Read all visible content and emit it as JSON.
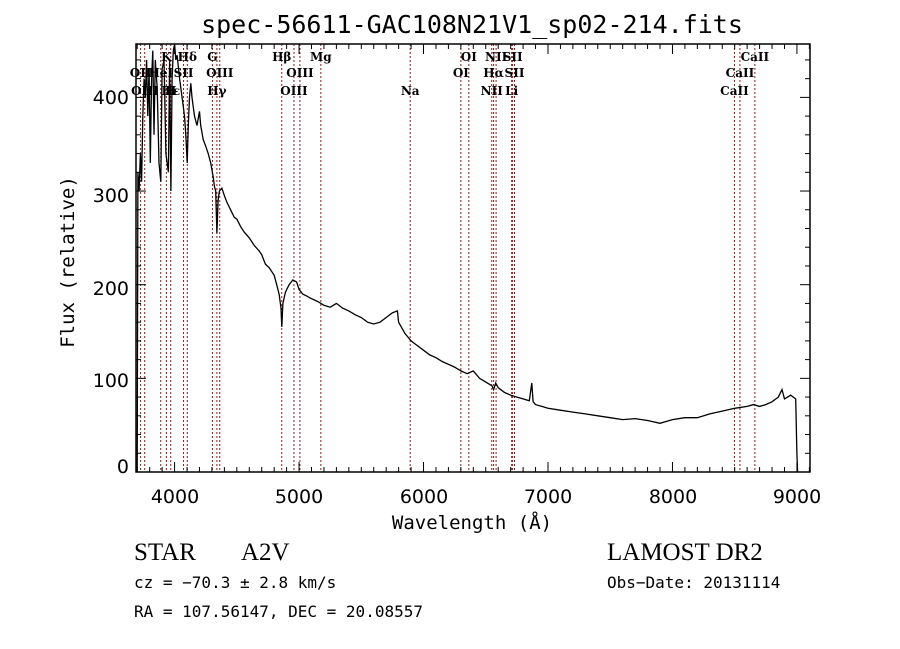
{
  "chart_data": {
    "type": "line",
    "title": "spec-56611-GAC108N21V1_sp02-214.fits",
    "xlabel": "Wavelength (Å)",
    "ylabel": "Flux (relative)",
    "xlim": [
      3690,
      9105
    ],
    "ylim": [
      0,
      457
    ],
    "grid": false,
    "x_ticks": [
      4000,
      5000,
      6000,
      7000,
      8000,
      9000
    ],
    "x_tick_labels": [
      "4000",
      "5000",
      "6000",
      "7000",
      "8000",
      "9000"
    ],
    "y_ticks": [
      0,
      100,
      200,
      300,
      400
    ],
    "y_tick_labels": [
      "0",
      "100",
      "200",
      "300",
      "400"
    ],
    "series": [
      {
        "name": "spectrum",
        "color": "#000000",
        "points": [
          [
            3700,
            0
          ],
          [
            3705,
            320
          ],
          [
            3715,
            300
          ],
          [
            3725,
            340
          ],
          [
            3735,
            310
          ],
          [
            3745,
            380
          ],
          [
            3755,
            420
          ],
          [
            3765,
            400
          ],
          [
            3775,
            440
          ],
          [
            3785,
            380
          ],
          [
            3795,
            430
          ],
          [
            3805,
            330
          ],
          [
            3815,
            420
          ],
          [
            3825,
            450
          ],
          [
            3835,
            360
          ],
          [
            3845,
            440
          ],
          [
            3860,
            410
          ],
          [
            3875,
            330
          ],
          [
            3889,
            310
          ],
          [
            3900,
            430
          ],
          [
            3915,
            440
          ],
          [
            3930,
            340
          ],
          [
            3950,
            320
          ],
          [
            3960,
            440
          ],
          [
            3970,
            300
          ],
          [
            3980,
            420
          ],
          [
            3990,
            450
          ],
          [
            4000,
            460
          ],
          [
            4010,
            440
          ],
          [
            4020,
            445
          ],
          [
            4040,
            420
          ],
          [
            4060,
            400
          ],
          [
            4080,
            380
          ],
          [
            4090,
            360
          ],
          [
            4101,
            330
          ],
          [
            4110,
            370
          ],
          [
            4120,
            400
          ],
          [
            4130,
            415
          ],
          [
            4140,
            400
          ],
          [
            4160,
            380
          ],
          [
            4180,
            370
          ],
          [
            4200,
            385
          ],
          [
            4210,
            370
          ],
          [
            4230,
            355
          ],
          [
            4250,
            348
          ],
          [
            4270,
            340
          ],
          [
            4290,
            330
          ],
          [
            4310,
            315
          ],
          [
            4320,
            305
          ],
          [
            4330,
            300
          ],
          [
            4340,
            255
          ],
          [
            4350,
            290
          ],
          [
            4360,
            300
          ],
          [
            4380,
            303
          ],
          [
            4400,
            295
          ],
          [
            4420,
            288
          ],
          [
            4450,
            280
          ],
          [
            4480,
            272
          ],
          [
            4500,
            270
          ],
          [
            4530,
            262
          ],
          [
            4560,
            256
          ],
          [
            4600,
            250
          ],
          [
            4640,
            242
          ],
          [
            4680,
            236
          ],
          [
            4700,
            232
          ],
          [
            4730,
            222
          ],
          [
            4760,
            218
          ],
          [
            4800,
            210
          ],
          [
            4820,
            200
          ],
          [
            4840,
            190
          ],
          [
            4855,
            175
          ],
          [
            4861,
            155
          ],
          [
            4870,
            180
          ],
          [
            4890,
            192
          ],
          [
            4920,
            200
          ],
          [
            4950,
            205
          ],
          [
            4980,
            203
          ],
          [
            5000,
            195
          ],
          [
            5030,
            190
          ],
          [
            5060,
            188
          ],
          [
            5100,
            185
          ],
          [
            5150,
            182
          ],
          [
            5200,
            178
          ],
          [
            5250,
            176
          ],
          [
            5300,
            180
          ],
          [
            5350,
            175
          ],
          [
            5400,
            172
          ],
          [
            5450,
            168
          ],
          [
            5500,
            165
          ],
          [
            5550,
            160
          ],
          [
            5600,
            158
          ],
          [
            5650,
            160
          ],
          [
            5700,
            165
          ],
          [
            5750,
            170
          ],
          [
            5790,
            172
          ],
          [
            5800,
            160
          ],
          [
            5850,
            148
          ],
          [
            5900,
            140
          ],
          [
            5950,
            135
          ],
          [
            6000,
            130
          ],
          [
            6050,
            125
          ],
          [
            6100,
            122
          ],
          [
            6150,
            118
          ],
          [
            6200,
            115
          ],
          [
            6250,
            112
          ],
          [
            6300,
            108
          ],
          [
            6350,
            105
          ],
          [
            6400,
            108
          ],
          [
            6450,
            100
          ],
          [
            6500,
            96
          ],
          [
            6550,
            92
          ],
          [
            6563,
            88
          ],
          [
            6580,
            95
          ],
          [
            6600,
            90
          ],
          [
            6650,
            85
          ],
          [
            6700,
            82
          ],
          [
            6750,
            80
          ],
          [
            6800,
            78
          ],
          [
            6850,
            76
          ],
          [
            6870,
            95
          ],
          [
            6880,
            75
          ],
          [
            6900,
            72
          ],
          [
            6950,
            70
          ],
          [
            7000,
            68
          ],
          [
            7100,
            66
          ],
          [
            7200,
            64
          ],
          [
            7300,
            62
          ],
          [
            7400,
            60
          ],
          [
            7500,
            58
          ],
          [
            7600,
            56
          ],
          [
            7700,
            57
          ],
          [
            7800,
            55
          ],
          [
            7900,
            52
          ],
          [
            8000,
            56
          ],
          [
            8100,
            58
          ],
          [
            8200,
            58
          ],
          [
            8300,
            62
          ],
          [
            8400,
            65
          ],
          [
            8500,
            68
          ],
          [
            8600,
            70
          ],
          [
            8650,
            72
          ],
          [
            8700,
            70
          ],
          [
            8750,
            72
          ],
          [
            8800,
            75
          ],
          [
            8850,
            80
          ],
          [
            8880,
            88
          ],
          [
            8900,
            78
          ],
          [
            8950,
            82
          ],
          [
            8990,
            78
          ],
          [
            9000,
            20
          ],
          [
            9005,
            0
          ]
        ]
      }
    ],
    "line_markers": {
      "color": "#8b1a1a",
      "lines": [
        {
          "label": "Hδ",
          "wavelength": 4102,
          "row": 1
        },
        {
          "label": "K",
          "wavelength": 3934,
          "row": 1
        },
        {
          "label": "OII",
          "wavelength": 3727,
          "row": 2
        },
        {
          "label": "HeI",
          "wavelength": 3889,
          "row": 2
        },
        {
          "label": "SII",
          "wavelength": 4072,
          "row": 2
        },
        {
          "label": "OIII",
          "wavelength": 3760,
          "row": 3
        },
        {
          "label": "H",
          "wavelength": 3969,
          "row": 3
        },
        {
          "label": "Hε",
          "wavelength": 3970,
          "row": 3
        },
        {
          "label": "G",
          "wavelength": 4304,
          "row": 1
        },
        {
          "label": "OIII",
          "wavelength": 4363,
          "row": 2
        },
        {
          "label": "Hγ",
          "wavelength": 4340,
          "row": 3
        },
        {
          "label": "Hβ",
          "wavelength": 4861,
          "row": 1
        },
        {
          "label": "Mg",
          "wavelength": 5175,
          "row": 1
        },
        {
          "label": "OIII",
          "wavelength": 5007,
          "row": 2
        },
        {
          "label": "OIII",
          "wavelength": 4959,
          "row": 3
        },
        {
          "label": "Na",
          "wavelength": 5893,
          "row": 3
        },
        {
          "label": "OI",
          "wavelength": 6364,
          "row": 1
        },
        {
          "label": "OI",
          "wavelength": 6300,
          "row": 2
        },
        {
          "label": "NII",
          "wavelength": 6583,
          "row": 1
        },
        {
          "label": "SII",
          "wavelength": 6716,
          "row": 1
        },
        {
          "label": "Hα",
          "wavelength": 6563,
          "row": 2
        },
        {
          "label": "SII",
          "wavelength": 6731,
          "row": 2
        },
        {
          "label": "NII",
          "wavelength": 6548,
          "row": 3
        },
        {
          "label": "Li",
          "wavelength": 6708,
          "row": 3
        },
        {
          "label": "CaII",
          "wavelength": 8662,
          "row": 1
        },
        {
          "label": "CaII",
          "wavelength": 8542,
          "row": 2
        },
        {
          "label": "CaII",
          "wavelength": 8498,
          "row": 3
        }
      ]
    }
  },
  "info": {
    "object_type": "STAR",
    "subclass": "A2V",
    "redshift": "cz = −70.3 ± 2.8 km/s",
    "coords": "RA = 107.56147, DEC =  20.08557",
    "survey": "LAMOST DR2",
    "obs_date": "Obs−Date: 20131114"
  }
}
